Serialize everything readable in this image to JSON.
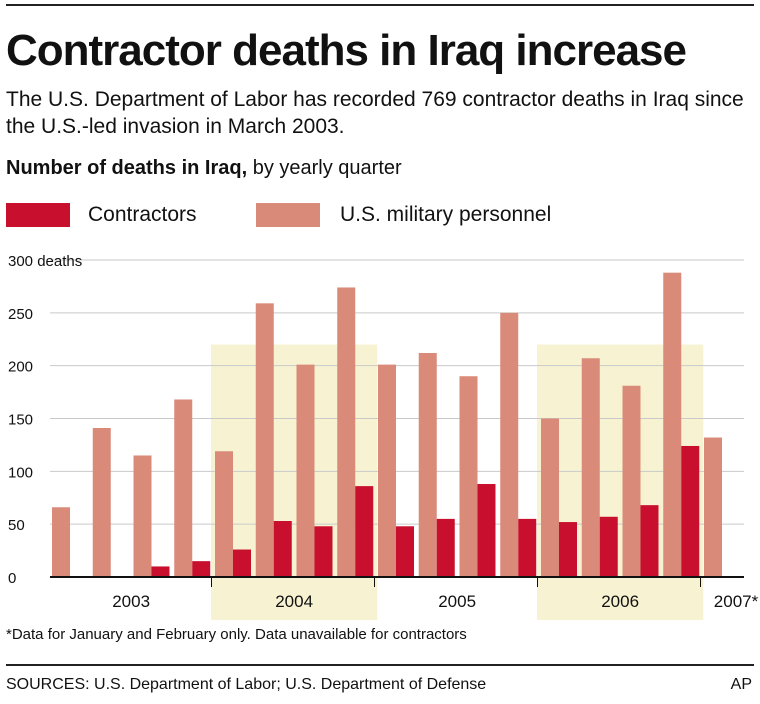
{
  "header": {
    "title": "Contractor deaths in Iraq increase",
    "subtitle": "The U.S. Department of Labor has recorded 769 contractor deaths in Iraq since the U.S.-led invasion in March 2003.",
    "chart_heading_bold": "Number of deaths in Iraq,",
    "chart_heading_rest": " by yearly quarter"
  },
  "footer": {
    "footnote": "*Data for January and February only. Data unavailable for contractors",
    "sources": "SOURCES: U.S. Department of Labor; U.S. Department of Defense",
    "credit": "AP"
  },
  "colors": {
    "contractors": "#c8102e",
    "military": "#d98a78",
    "year_highlight": "#f7f3d2"
  },
  "chart_data": {
    "type": "bar",
    "title": "Number of deaths in Iraq, by yearly quarter",
    "y_unit_label": "300 deaths",
    "ylim": [
      0,
      300
    ],
    "yticks": [
      0,
      50,
      100,
      150,
      200,
      250,
      300
    ],
    "ytick_labels": [
      "0",
      "50",
      "100",
      "150",
      "200",
      "250",
      "300 deaths"
    ],
    "grid": true,
    "legend_position": "top",
    "year_labels": [
      "2003",
      "2004",
      "2005",
      "2006",
      "2007*"
    ],
    "highlighted_years": [
      "2004",
      "2006"
    ],
    "categories": [
      "2003 Q1",
      "2003 Q2",
      "2003 Q3",
      "2003 Q4",
      "2004 Q1",
      "2004 Q2",
      "2004 Q3",
      "2004 Q4",
      "2005 Q1",
      "2005 Q2",
      "2005 Q3",
      "2005 Q4",
      "2006 Q1",
      "2006 Q2",
      "2006 Q3",
      "2006 Q4",
      "2007*"
    ],
    "series": [
      {
        "name": "Contractors",
        "values": [
          0,
          0,
          10,
          15,
          26,
          53,
          48,
          86,
          48,
          55,
          88,
          55,
          52,
          57,
          68,
          124,
          null
        ]
      },
      {
        "name": "U.S. military personnel",
        "values": [
          66,
          141,
          115,
          168,
          119,
          259,
          201,
          274,
          201,
          212,
          190,
          250,
          150,
          207,
          181,
          288,
          132
        ]
      }
    ]
  }
}
